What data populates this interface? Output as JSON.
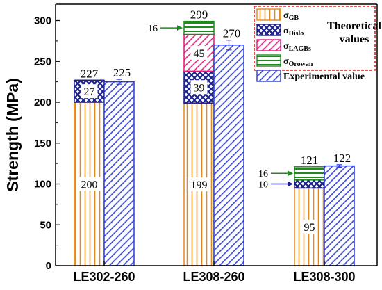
{
  "chart_data": {
    "type": "bar",
    "stacked": true,
    "ylabel": "Strength (MPa)",
    "ylim": [
      0,
      320
    ],
    "yticks": [
      0,
      50,
      100,
      150,
      200,
      250,
      300
    ],
    "categories": [
      "LE302-260",
      "LE308-260",
      "LE308-300"
    ],
    "theoretical_series": [
      {
        "key": "GB",
        "symbol": "σ",
        "sub": "GB",
        "color": "#E08A1E",
        "pattern": "vertical-lines",
        "values": [
          200,
          199,
          95
        ]
      },
      {
        "key": "Dislo",
        "symbol": "σ",
        "sub": "Dislo",
        "color": "#1B1F8C",
        "pattern": "crosshatch",
        "values": [
          27,
          39,
          10
        ]
      },
      {
        "key": "LAGBs",
        "symbol": "σ",
        "sub": "LAGBs",
        "color": "#E6147A",
        "pattern": "diagonal-lines",
        "values": [
          0,
          45,
          0
        ]
      },
      {
        "key": "Orowan",
        "symbol": "σ",
        "sub": "Orowan",
        "color": "#1E8A1E",
        "pattern": "horizontal-lines",
        "values": [
          0,
          16,
          16
        ]
      }
    ],
    "experimental_series": {
      "name": "Experimental value",
      "color": "#2B3BD6",
      "pattern": "diagonal-lines",
      "values": [
        225,
        270,
        122
      ],
      "errors": [
        3,
        6,
        1.5
      ]
    },
    "theoretical_totals": [
      227,
      299,
      121
    ],
    "segment_labels": [
      {
        "category": 0,
        "series": "GB",
        "text": "200"
      },
      {
        "category": 0,
        "series": "Dislo",
        "text": "27"
      },
      {
        "category": 1,
        "series": "GB",
        "text": "199"
      },
      {
        "category": 1,
        "series": "Dislo",
        "text": "39"
      },
      {
        "category": 1,
        "series": "LAGBs",
        "text": "45"
      },
      {
        "category": 2,
        "series": "GB",
        "text": "95"
      }
    ],
    "side_labels": [
      {
        "category": 1,
        "series": "Orowan",
        "text": "16",
        "arrow_color": "#1E8A1E"
      },
      {
        "category": 2,
        "series": "Orowan",
        "text": "16",
        "arrow_color": "#1E8A1E"
      },
      {
        "category": 2,
        "series": "Dislo",
        "text": "10",
        "arrow_color": "#1B1F8C"
      }
    ],
    "legend": {
      "placement": "top-right",
      "group_label_line1": "Theoretical",
      "group_label_line2": "values",
      "border_color": "#E02020"
    }
  }
}
